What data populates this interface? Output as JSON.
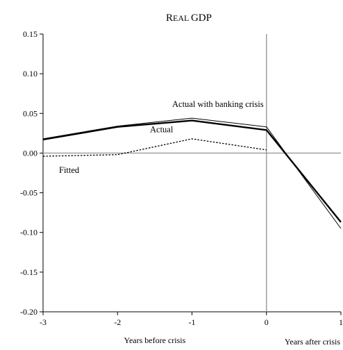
{
  "chart_data": {
    "type": "line",
    "title": "Real GDP",
    "title_parts": [
      "R",
      "EAL ",
      "GDP"
    ],
    "x_ticks": [
      "-3",
      "-2",
      "-1",
      "0",
      "1"
    ],
    "x_tick_values": [
      -3,
      -2,
      -1,
      0,
      1
    ],
    "y_ticks": [
      "0.15",
      "0.10",
      "0.05",
      "0.00",
      "-0.05",
      "-0.10",
      "-0.15",
      "-0.20"
    ],
    "y_tick_values": [
      0.15,
      0.1,
      0.05,
      0.0,
      -0.05,
      -0.1,
      -0.15,
      -0.2
    ],
    "xlim": [
      -3,
      1
    ],
    "ylim": [
      -0.2,
      0.15
    ],
    "x_caption_before": "Years before crisis",
    "x_caption_after": "Years after crisis",
    "reference_lines": {
      "x": 0,
      "y": 0
    },
    "grid": false,
    "series": [
      {
        "name": "Actual with banking crisis",
        "style": "solid-thin",
        "color": "#000000",
        "x": [
          -3,
          -2,
          -1,
          0,
          1
        ],
        "y": [
          0.018,
          0.034,
          0.044,
          0.033,
          -0.095
        ]
      },
      {
        "name": "Actual",
        "style": "solid-thick",
        "color": "#000000",
        "x": [
          -3,
          -2,
          -1,
          0,
          1
        ],
        "y": [
          0.017,
          0.033,
          0.041,
          0.029,
          -0.087
        ]
      },
      {
        "name": "Fitted",
        "style": "dotted",
        "color": "#000000",
        "x": [
          -3,
          -2,
          -1,
          0
        ],
        "y": [
          -0.004,
          -0.002,
          0.018,
          0.004
        ]
      }
    ]
  }
}
